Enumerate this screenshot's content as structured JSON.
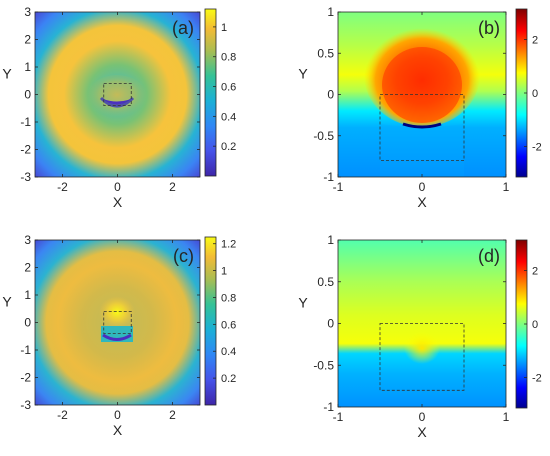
{
  "chart_data": [
    {
      "type": "heatmap",
      "panel_label": "(a)",
      "xlabel": "X",
      "ylabel": "Y",
      "xlim": [
        -3,
        3
      ],
      "ylim": [
        -3,
        3
      ],
      "xticks": [
        -2,
        0,
        2
      ],
      "yticks": [
        3,
        2,
        1,
        0,
        -1,
        -2,
        -3
      ],
      "colorbar": {
        "colormap": "parula",
        "range": [
          0,
          1.12
        ],
        "ticks": [
          1,
          0.8,
          0.6,
          0.4,
          0.2
        ]
      },
      "dashed_box": {
        "x": [
          -0.5,
          0.5
        ],
        "y": [
          -0.4,
          0.4
        ]
      }
    },
    {
      "type": "heatmap",
      "panel_label": "(b)",
      "xlabel": "X",
      "ylabel": "Y",
      "xlim": [
        -1,
        1
      ],
      "ylim": [
        -1,
        1
      ],
      "xticks": [
        -1,
        0,
        1
      ],
      "yticks": [
        1,
        0.5,
        0,
        -0.5,
        -1
      ],
      "colorbar": {
        "colormap": "jet",
        "range": [
          -3.14,
          3.14
        ],
        "ticks": [
          2,
          0,
          -2
        ]
      },
      "dashed_box": {
        "x": [
          -0.5,
          0.5
        ],
        "y": [
          -0.8,
          0
        ]
      }
    },
    {
      "type": "heatmap",
      "panel_label": "(c)",
      "xlabel": "X",
      "ylabel": "Y",
      "xlim": [
        -3,
        3
      ],
      "ylim": [
        -3,
        3
      ],
      "xticks": [
        -2,
        0,
        2
      ],
      "yticks": [
        3,
        2,
        1,
        0,
        -1,
        -2,
        -3
      ],
      "colorbar": {
        "colormap": "parula",
        "range": [
          0,
          1.25
        ],
        "ticks": [
          1.2,
          1,
          0.8,
          0.6,
          0.4,
          0.2
        ]
      },
      "dashed_box": {
        "x": [
          -0.5,
          0.5
        ],
        "y": [
          -0.4,
          0.4
        ]
      }
    },
    {
      "type": "heatmap",
      "panel_label": "(d)",
      "xlabel": "X",
      "ylabel": "Y",
      "xlim": [
        -1,
        1
      ],
      "ylim": [
        -1,
        1
      ],
      "xticks": [
        -1,
        0,
        1
      ],
      "yticks": [
        1,
        0.5,
        0,
        -0.5,
        -1
      ],
      "colorbar": {
        "colormap": "jet",
        "range": [
          -3.14,
          3.14
        ],
        "ticks": [
          2,
          0,
          -2
        ]
      },
      "dashed_box": {
        "x": [
          -0.5,
          0.5
        ],
        "y": [
          -0.8,
          0
        ]
      }
    }
  ]
}
